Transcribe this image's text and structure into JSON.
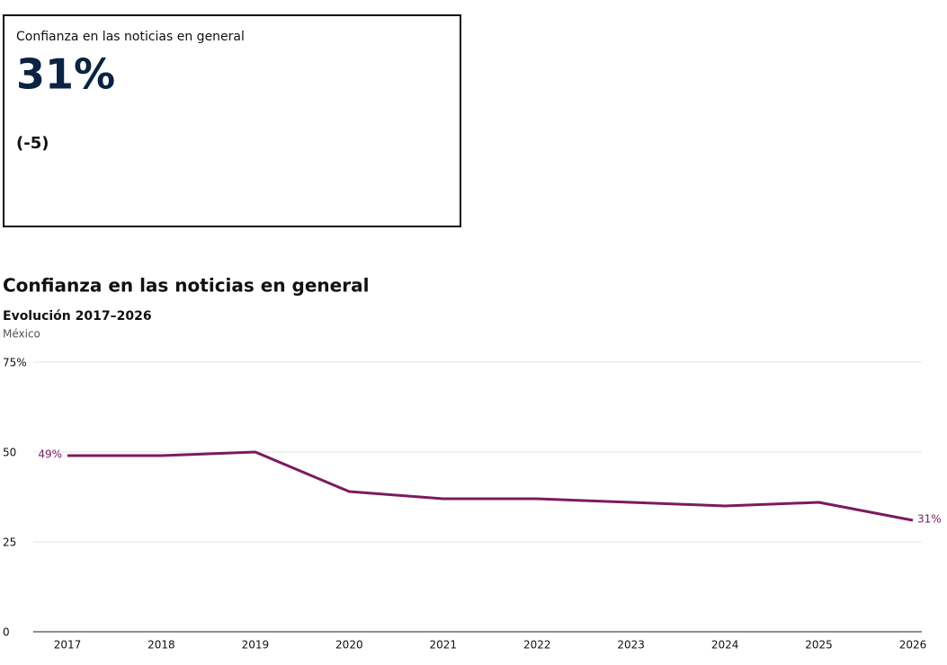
{
  "card": {
    "label": "Confianza en las noticias en general",
    "value": "31%",
    "change": "(-5)"
  },
  "chart_data": {
    "type": "line",
    "title": "Confianza en las noticias en general",
    "subtitle": "Evolución 2017–2026",
    "note": "México",
    "categories": [
      "2017",
      "2018",
      "2019",
      "2020",
      "2021",
      "2022",
      "2023",
      "2024",
      "2025",
      "2026"
    ],
    "values": [
      49,
      49,
      50,
      39,
      37,
      37,
      36,
      35,
      36,
      31
    ],
    "value_labels": [
      "49%",
      null,
      null,
      null,
      null,
      null,
      null,
      null,
      null,
      "31%"
    ],
    "color": "#7b1b5e",
    "ylim": [
      0,
      75
    ],
    "yticks": [
      0,
      25,
      50,
      {
        "value": 75,
        "label": "75%"
      }
    ],
    "grid": true
  }
}
